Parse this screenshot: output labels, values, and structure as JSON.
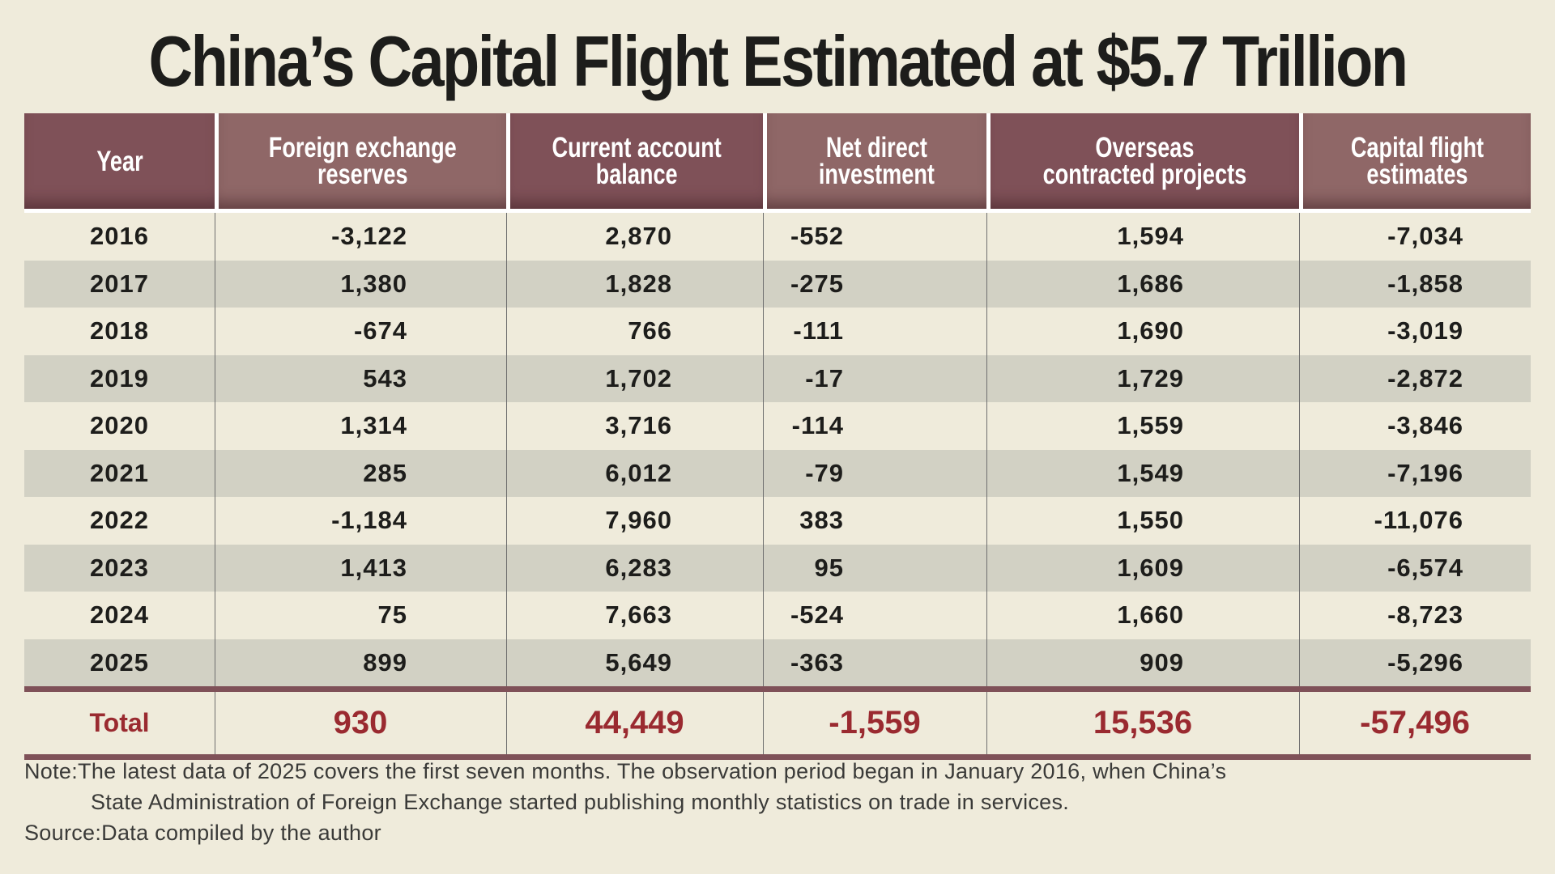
{
  "title": "China’s Capital Flight Estimated at $5.7 Trillion",
  "chart_data": {
    "type": "table",
    "title": "China’s Capital Flight Estimated at $5.7 Trillion",
    "columns": [
      "Year",
      "Foreign exchange reserves",
      "Current account balance",
      "Net direct investment",
      "Overseas contracted projects",
      "Capital flight estimates"
    ],
    "rows": [
      [
        "2016",
        "-3,122",
        "2,870",
        "-552",
        "1,594",
        "-7,034"
      ],
      [
        "2017",
        "1,380",
        "1,828",
        "-275",
        "1,686",
        "-1,858"
      ],
      [
        "2018",
        "-674",
        "766",
        "-111",
        "1,690",
        "-3,019"
      ],
      [
        "2019",
        "543",
        "1,702",
        "-17",
        "1,729",
        "-2,872"
      ],
      [
        "2020",
        "1,314",
        "3,716",
        "-114",
        "1,559",
        "-3,846"
      ],
      [
        "2021",
        "285",
        "6,012",
        "-79",
        "1,549",
        "-7,196"
      ],
      [
        "2022",
        "-1,184",
        "7,960",
        "383",
        "1,550",
        "-11,076"
      ],
      [
        "2023",
        "1,413",
        "6,283",
        "95",
        "1,609",
        "-6,574"
      ],
      [
        "2024",
        "75",
        "7,663",
        "-524",
        "1,660",
        "-8,723"
      ],
      [
        "2025",
        "899",
        "5,649",
        "-363",
        "909",
        "-5,296"
      ]
    ],
    "total": [
      "Total",
      "930",
      "44,449",
      "-1,559",
      "15,536",
      "-57,496"
    ]
  },
  "header": {
    "year": [
      "Year"
    ],
    "fx": [
      "Foreign exchange",
      "reserves"
    ],
    "ca": [
      "Current account",
      "balance"
    ],
    "ndi": [
      "Net direct",
      "investment"
    ],
    "ocp": [
      "Overseas",
      "contracted projects"
    ],
    "cf": [
      "Capital flight",
      "estimates"
    ]
  },
  "colors": {
    "header_dark": "#7f5158",
    "header_light": "#8f6767",
    "total_text": "#9a2a30",
    "background": "#efebdb",
    "alt_row": "#d2d1c4"
  },
  "notes": {
    "note_line1": "Note:The latest data of 2025 covers the first seven months. The observation period began in January 2016, when China’s",
    "note_line2": "State Administration of Foreign Exchange started publishing monthly statistics on trade in services.",
    "source": "Source:Data compiled by the author"
  }
}
